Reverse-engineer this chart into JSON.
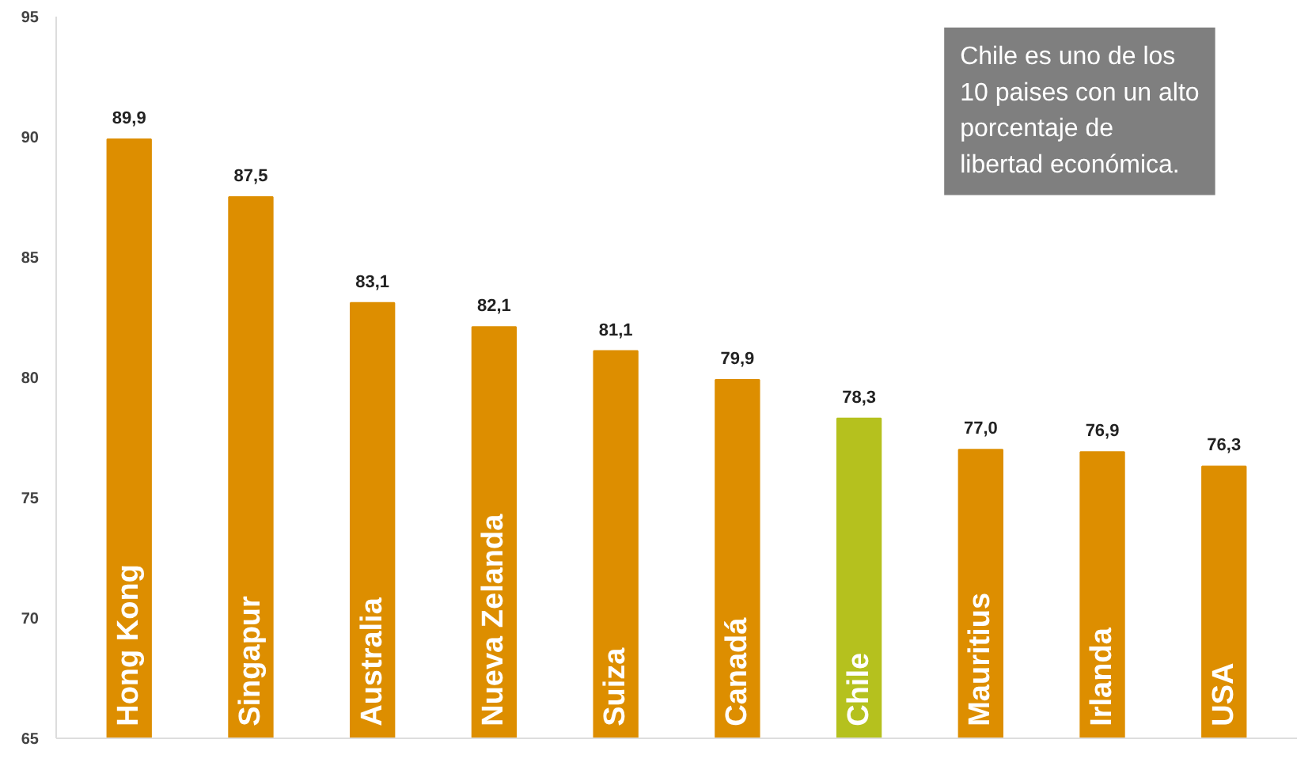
{
  "chart_data": {
    "type": "bar",
    "categories": [
      "Hong Kong",
      "Singapur",
      "Australia",
      "Nueva Zelanda",
      "Suiza",
      "Canadá",
      "Chile",
      "Mauritius",
      "Irlanda",
      "USA"
    ],
    "values": [
      89.9,
      87.5,
      83.1,
      82.1,
      81.1,
      79.9,
      78.3,
      77.0,
      76.9,
      76.3
    ],
    "value_labels": [
      "89,9",
      "87,5",
      "83,1",
      "82,1",
      "81,1",
      "79,9",
      "78,3",
      "77,0",
      "76,9",
      "76,3"
    ],
    "colors": [
      "#dd8e00",
      "#dd8e00",
      "#dd8e00",
      "#dd8e00",
      "#dd8e00",
      "#dd8e00",
      "#b5c11e",
      "#dd8e00",
      "#dd8e00",
      "#dd8e00"
    ],
    "ylim": [
      65,
      95
    ],
    "yticks": [
      65,
      70,
      75,
      80,
      85,
      90,
      95
    ],
    "grid": false,
    "annotations": [
      "Chile es uno de los 10 paises con un alto porcentaje de libertad económica."
    ]
  }
}
